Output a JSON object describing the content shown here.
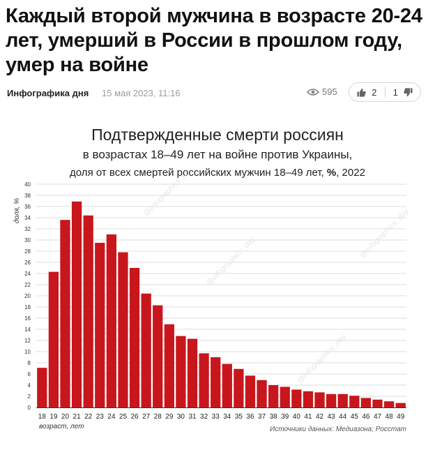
{
  "article": {
    "headline": "Каждый второй мужчина в возрасте 20-24 лет, умерший в России в прошлом году, умер на войне",
    "rubric": "Инфографика дня",
    "date": "15 мая 2023, 11:16",
    "views": "595",
    "likes": "2",
    "dislikes": "1",
    "icons": {
      "views": "eye-icon",
      "like": "thumbs-up-icon",
      "dislike": "thumbs-down-icon"
    }
  },
  "chart_title": {
    "line1": "Подтвержденные смерти россиян",
    "line2": "в возрастах 18–49 лет на войне против Украины,",
    "line3_prefix": "доля от всех смертей российских мужчин 18–49 лет, ",
    "line3_bold": "%",
    "line3_suffix": ", 2022"
  },
  "chart_data": {
    "type": "bar",
    "categories": [
      "18",
      "19",
      "20",
      "21",
      "22",
      "23",
      "24",
      "25",
      "26",
      "27",
      "28",
      "29",
      "30",
      "31",
      "32",
      "33",
      "34",
      "35",
      "36",
      "37",
      "38",
      "39",
      "40",
      "41",
      "42",
      "43",
      "44",
      "45",
      "46",
      "47",
      "48",
      "49"
    ],
    "values": [
      7.1,
      24.3,
      33.6,
      36.9,
      34.4,
      29.5,
      31.0,
      27.8,
      25.0,
      20.4,
      18.3,
      14.9,
      12.8,
      12.3,
      9.7,
      9.0,
      7.8,
      6.9,
      5.7,
      4.9,
      4.0,
      3.7,
      3.2,
      2.9,
      2.7,
      2.4,
      2.4,
      2.1,
      1.7,
      1.4,
      1.1,
      0.8
    ],
    "ylabel": "доля, %",
    "xlabel": "возраст, лет",
    "ylim": [
      0,
      40
    ],
    "yticks": [
      "0",
      "2",
      "4",
      "6",
      "8",
      "10",
      "12",
      "14",
      "16",
      "18",
      "20",
      "22",
      "24",
      "26",
      "28",
      "30",
      "32",
      "34",
      "36",
      "38",
      "40"
    ],
    "source": "Источники данных: Медиазона; Росстат",
    "bar_color": "#c8161d",
    "grid": true
  },
  "watermark": "@infographics_day"
}
